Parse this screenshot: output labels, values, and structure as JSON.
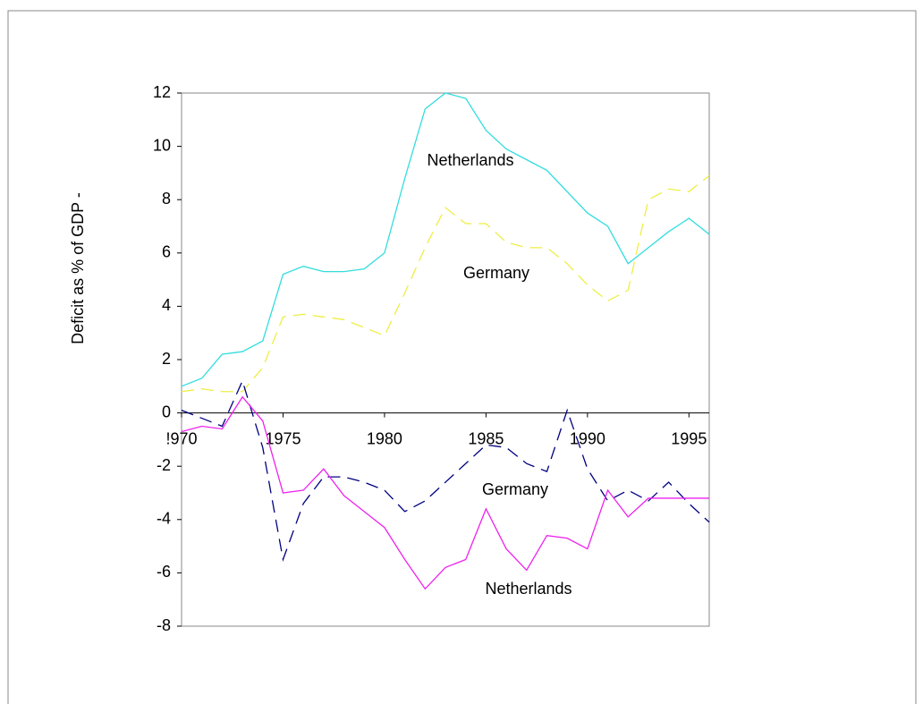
{
  "chart_data": {
    "type": "line",
    "y_label": "Deficit as % of GDP -",
    "x": [
      1970,
      1971,
      1972,
      1973,
      1974,
      1975,
      1976,
      1977,
      1978,
      1979,
      1980,
      1981,
      1982,
      1983,
      1984,
      1985,
      1986,
      1987,
      1988,
      1989,
      1990,
      1991,
      1992,
      1993,
      1994,
      1995,
      1996
    ],
    "series": [
      {
        "name": "Netherlands",
        "color": "#33dddd",
        "dash": false,
        "values": [
          1.0,
          1.3,
          2.2,
          2.3,
          2.7,
          5.2,
          5.5,
          5.3,
          5.3,
          5.4,
          6.0,
          8.8,
          11.4,
          12.0,
          11.8,
          10.6,
          9.9,
          9.5,
          9.1,
          8.3,
          7.5,
          7.0,
          5.6,
          6.2,
          6.8,
          7.3,
          6.7
        ]
      },
      {
        "name": "Germany",
        "color": "#eeee44",
        "dash": true,
        "values": [
          0.8,
          0.9,
          0.8,
          0.8,
          1.7,
          3.6,
          3.7,
          3.6,
          3.5,
          3.2,
          2.9,
          4.5,
          6.2,
          7.7,
          7.1,
          7.1,
          6.4,
          6.2,
          6.2,
          5.6,
          4.8,
          4.2,
          4.6,
          8.0,
          8.4,
          8.3,
          8.9
        ]
      },
      {
        "name": "Germany",
        "color": "#000080",
        "dash": true,
        "values": [
          0.1,
          -0.2,
          -0.5,
          1.2,
          -1.3,
          -5.5,
          -3.4,
          -2.4,
          -2.4,
          -2.6,
          -2.9,
          -3.7,
          -3.3,
          -2.6,
          -1.9,
          -1.2,
          -1.3,
          -1.9,
          -2.2,
          0.1,
          -2.1,
          -3.3,
          -2.9,
          -3.3,
          -2.6,
          -3.4,
          -4.1
        ]
      },
      {
        "name": "Netherlands",
        "color": "#ee22ee",
        "dash": false,
        "values": [
          -0.7,
          -0.5,
          -0.6,
          0.6,
          -0.3,
          -3.0,
          -2.9,
          -2.1,
          -3.1,
          -3.7,
          -4.3,
          -5.5,
          -6.6,
          -5.8,
          -5.5,
          -3.6,
          -5.1,
          -5.9,
          -4.6,
          -4.7,
          -5.1,
          -2.9,
          -3.9,
          -3.2,
          -3.2,
          -3.2,
          -3.2
        ]
      }
    ],
    "xlim": [
      1970,
      1996
    ],
    "ylim": [
      -8,
      12
    ],
    "xticks": [
      {
        "value": 1970,
        "label": "!970"
      },
      1975,
      1980,
      1985,
      1990,
      1995
    ],
    "yticks": [
      -8,
      -6,
      -4,
      -2,
      0,
      2,
      4,
      6,
      8,
      10,
      12
    ]
  }
}
